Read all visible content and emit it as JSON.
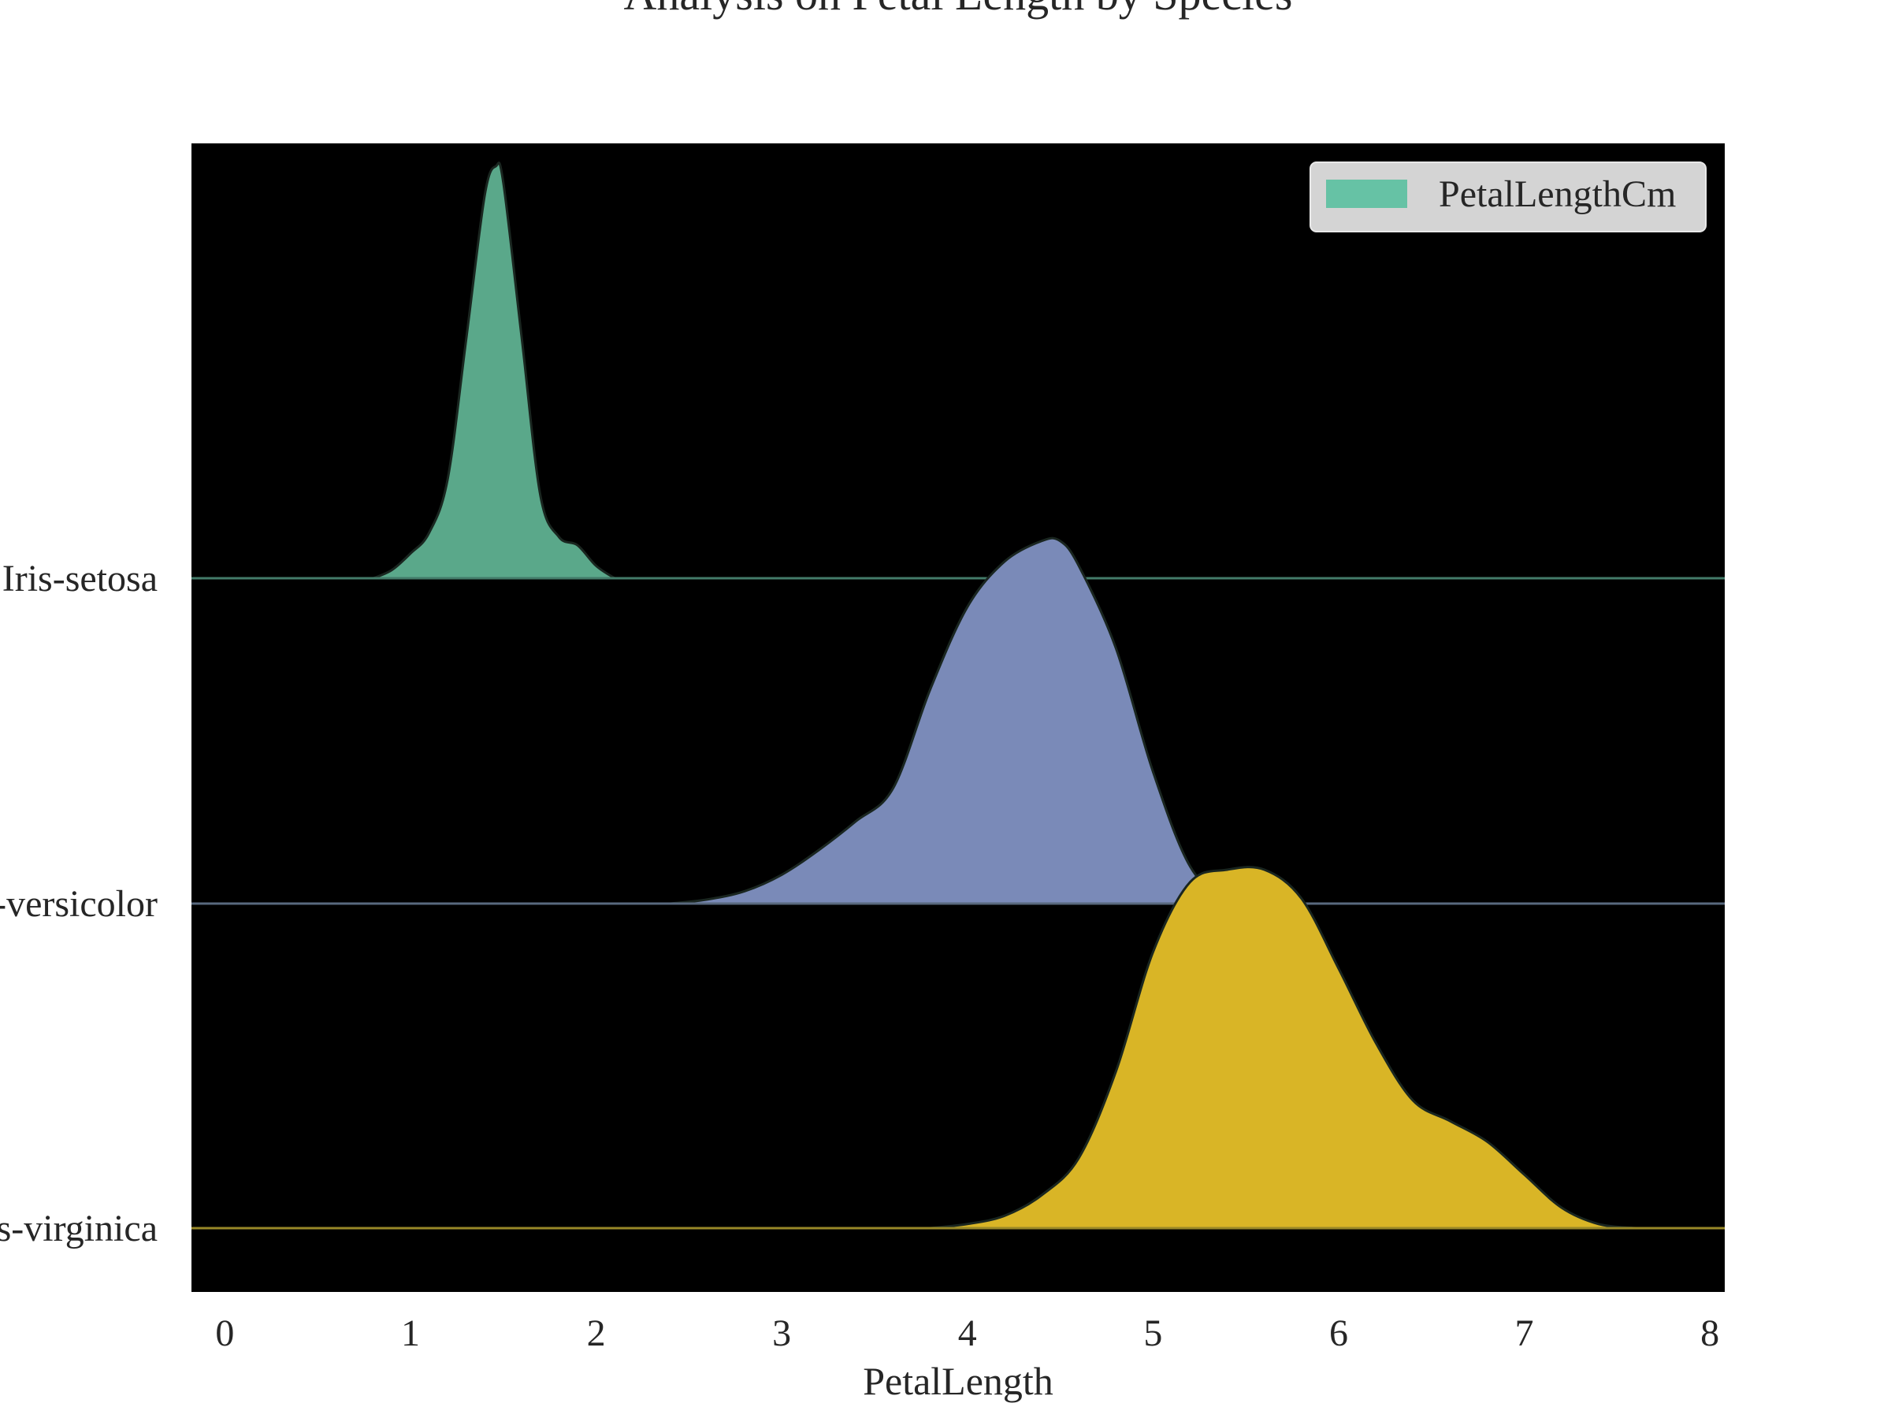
{
  "chart_data": {
    "type": "area",
    "subtype": "ridgeline",
    "title": "Analysis on Petal Length by Species",
    "xlabel": "PetalLength",
    "ylabel": "",
    "xlim": [
      -0.18,
      8.08
    ],
    "x_ticks": [
      0,
      1,
      2,
      3,
      4,
      5,
      6,
      7,
      8
    ],
    "x_tick_labels": [
      "0",
      "1",
      "2",
      "3",
      "4",
      "5",
      "6",
      "7",
      "8"
    ],
    "background": "#000000",
    "grid": false,
    "legend": {
      "position": "top-right",
      "entries": [
        "PetalLengthCm"
      ],
      "swatch_color": "#66c2a5"
    },
    "categories": [
      "Iris-setosa",
      "Iris-versicolor",
      "Iris-virginica"
    ],
    "series": [
      {
        "category": "Iris-setosa",
        "color": "#5aa88a",
        "baseline_color": "#66c2a5",
        "points": [
          [
            0.8,
            0.0
          ],
          [
            0.9,
            0.02
          ],
          [
            1.0,
            0.06
          ],
          [
            1.1,
            0.11
          ],
          [
            1.2,
            0.24
          ],
          [
            1.3,
            0.58
          ],
          [
            1.4,
            0.93
          ],
          [
            1.46,
            1.0
          ],
          [
            1.5,
            0.96
          ],
          [
            1.6,
            0.58
          ],
          [
            1.7,
            0.2
          ],
          [
            1.8,
            0.1
          ],
          [
            1.9,
            0.08
          ],
          [
            2.0,
            0.03
          ],
          [
            2.1,
            0.0
          ]
        ]
      },
      {
        "category": "Iris-versicolor",
        "color": "#7a8ab8",
        "baseline_color": "#8da0cb",
        "points": [
          [
            2.4,
            0.0
          ],
          [
            2.6,
            0.01
          ],
          [
            2.8,
            0.03
          ],
          [
            3.0,
            0.07
          ],
          [
            3.2,
            0.13
          ],
          [
            3.4,
            0.2
          ],
          [
            3.6,
            0.28
          ],
          [
            3.8,
            0.52
          ],
          [
            4.0,
            0.72
          ],
          [
            4.2,
            0.83
          ],
          [
            4.4,
            0.88
          ],
          [
            4.5,
            0.88
          ],
          [
            4.6,
            0.82
          ],
          [
            4.8,
            0.62
          ],
          [
            5.0,
            0.32
          ],
          [
            5.2,
            0.09
          ],
          [
            5.4,
            0.01
          ],
          [
            5.6,
            0.0
          ]
        ]
      },
      {
        "category": "Iris-virginica",
        "color": "#d9b526",
        "baseline_color": "#ffd92f",
        "points": [
          [
            3.8,
            0.0
          ],
          [
            4.0,
            0.01
          ],
          [
            4.2,
            0.03
          ],
          [
            4.4,
            0.08
          ],
          [
            4.6,
            0.17
          ],
          [
            4.8,
            0.38
          ],
          [
            5.0,
            0.67
          ],
          [
            5.2,
            0.84
          ],
          [
            5.4,
            0.87
          ],
          [
            5.6,
            0.87
          ],
          [
            5.8,
            0.8
          ],
          [
            6.0,
            0.63
          ],
          [
            6.2,
            0.45
          ],
          [
            6.4,
            0.31
          ],
          [
            6.6,
            0.26
          ],
          [
            6.8,
            0.21
          ],
          [
            7.0,
            0.13
          ],
          [
            7.2,
            0.05
          ],
          [
            7.4,
            0.01
          ],
          [
            7.6,
            0.0
          ]
        ]
      }
    ]
  }
}
